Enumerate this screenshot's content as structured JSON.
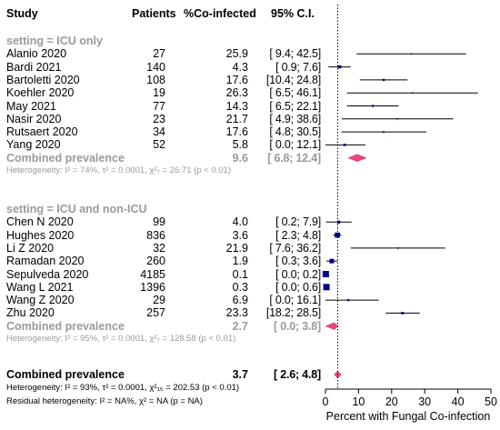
{
  "chart_data": {
    "type": "forest",
    "headers": {
      "study": "Study",
      "patients": "Patients",
      "percent": "%Co-infected",
      "ci": "95% C.I."
    },
    "xlabel": "Percent with Fungal Co-infection",
    "xlim": [
      0,
      50
    ],
    "xticks": [
      0,
      10,
      20,
      30,
      40,
      50
    ],
    "reference_line": 3.7,
    "colors": {
      "box": "#00008b",
      "diamond": "#e8467c",
      "line": "#000000",
      "subgroup_text": "#9a9a9a"
    },
    "groups": [
      {
        "title": "setting = ICU only",
        "studies": [
          {
            "name": "Alanio 2020",
            "patients": "27",
            "estimate": 25.9,
            "lower": 9.4,
            "upper": 42.5,
            "est_text": "25.9",
            "ci_text": "[ 9.4; 42.5]"
          },
          {
            "name": "Bardi 2021",
            "patients": "140",
            "estimate": 4.3,
            "lower": 0.9,
            "upper": 7.6,
            "est_text": "4.3",
            "ci_text": "[ 0.9; 7.6]"
          },
          {
            "name": "Bartoletti 2020",
            "patients": "108",
            "estimate": 17.6,
            "lower": 10.4,
            "upper": 24.8,
            "est_text": "17.6",
            "ci_text": "[10.4; 24.8]"
          },
          {
            "name": "Koehler 2020",
            "patients": "19",
            "estimate": 26.3,
            "lower": 6.5,
            "upper": 46.1,
            "est_text": "26.3",
            "ci_text": "[ 6.5; 46.1]"
          },
          {
            "name": "May 2021",
            "patients": "77",
            "estimate": 14.3,
            "lower": 6.5,
            "upper": 22.1,
            "est_text": "14.3",
            "ci_text": "[ 6.5; 22.1]"
          },
          {
            "name": "Nasir 2020",
            "patients": "23",
            "estimate": 21.7,
            "lower": 4.9,
            "upper": 38.6,
            "est_text": "21.7",
            "ci_text": "[ 4.9; 38.6]"
          },
          {
            "name": "Rutsaert 2020",
            "patients": "34",
            "estimate": 17.6,
            "lower": 4.8,
            "upper": 30.5,
            "est_text": "17.6",
            "ci_text": "[ 4.8; 30.5]"
          },
          {
            "name": "Yang 2020",
            "patients": "52",
            "estimate": 5.8,
            "lower": 0.0,
            "upper": 12.1,
            "est_text": "5.8",
            "ci_text": "[ 0.0; 12.1]"
          }
        ],
        "combined": {
          "label": "Combined prevalence",
          "estimate": 9.6,
          "lower": 6.8,
          "upper": 12.4,
          "est_text": "9.6",
          "ci_text": "[ 6.8; 12.4]"
        },
        "heterogeneity": "Heterogeneity: I² = 74%, τ² = 0.0001, χ²₇ = 26.71 (p < 0.01)"
      },
      {
        "title": "setting = ICU and non-ICU",
        "studies": [
          {
            "name": "Chen N 2020",
            "patients": "99",
            "estimate": 4.0,
            "lower": 0.2,
            "upper": 7.9,
            "est_text": "4.0",
            "ci_text": "[ 0.2; 7.9]"
          },
          {
            "name": "Hughes 2020",
            "patients": "836",
            "estimate": 3.6,
            "lower": 2.3,
            "upper": 4.8,
            "est_text": "3.6",
            "ci_text": "[ 2.3; 4.8]"
          },
          {
            "name": "Li Z 2020",
            "patients": "32",
            "estimate": 21.9,
            "lower": 7.6,
            "upper": 36.2,
            "est_text": "21.9",
            "ci_text": "[ 7.6; 36.2]"
          },
          {
            "name": "Ramadan 2020",
            "patients": "260",
            "estimate": 1.9,
            "lower": 0.3,
            "upper": 3.6,
            "est_text": "1.9",
            "ci_text": "[ 0.3; 3.6]"
          },
          {
            "name": "Sepulveda 2020",
            "patients": "4185",
            "estimate": 0.1,
            "lower": 0.0,
            "upper": 0.2,
            "est_text": "0.1",
            "ci_text": "[ 0.0; 0.2]"
          },
          {
            "name": "Wang L 2021",
            "patients": "1396",
            "estimate": 0.3,
            "lower": 0.0,
            "upper": 0.6,
            "est_text": "0.3",
            "ci_text": "[ 0.0; 0.6]"
          },
          {
            "name": "Wang Z 2020",
            "patients": "29",
            "estimate": 6.9,
            "lower": 0.0,
            "upper": 16.1,
            "est_text": "6.9",
            "ci_text": "[ 0.0; 16.1]"
          },
          {
            "name": "Zhu 2020",
            "patients": "257",
            "estimate": 23.3,
            "lower": 18.2,
            "upper": 28.5,
            "est_text": "23.3",
            "ci_text": "[18.2; 28.5]"
          }
        ],
        "combined": {
          "label": "Combined prevalence",
          "estimate": 2.7,
          "lower": 0.0,
          "upper": 3.8,
          "est_text": "2.7",
          "ci_text": "[ 0.0; 3.8]"
        },
        "heterogeneity": "Heterogeneity: I² = 95%, τ² = 0.0001, χ²₇ = 128.58 (p < 0.01)"
      }
    ],
    "overall": {
      "label": "Combined prevalence",
      "estimate": 3.7,
      "lower": 2.6,
      "upper": 4.8,
      "est_text": "3.7",
      "ci_text": "[ 2.6; 4.8]",
      "heterogeneity": "Heterogeneity: I² = 93%, τ² = 0.0001, χ²₁₅ = 202.53 (p < 0.01)",
      "residual": "Residual heterogeneity: I² = NA%, χ² = NA (p = NA)"
    }
  }
}
